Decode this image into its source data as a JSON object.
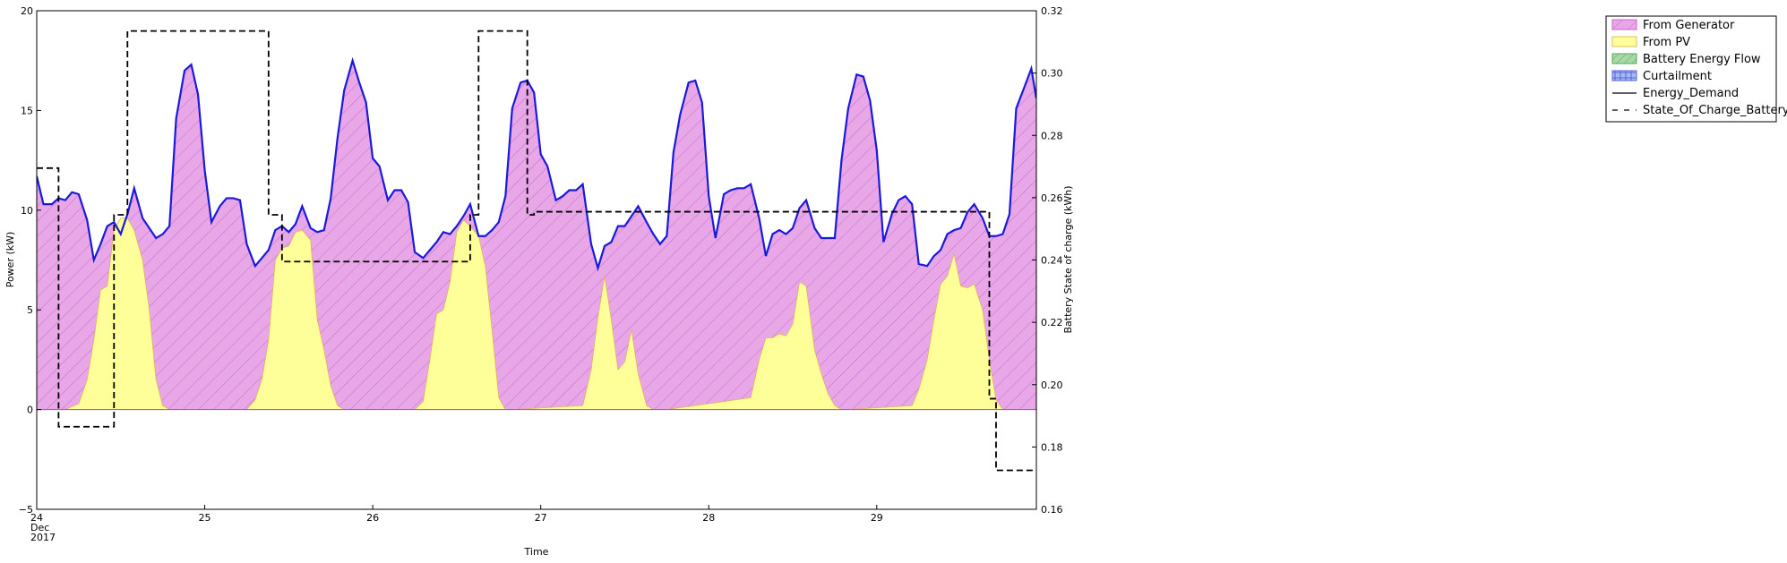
{
  "chart_data": {
    "type": "area",
    "xlabel": "Time",
    "ylabel_left": "Power (kW)",
    "ylabel_right": "Battery State of charge (kWh)",
    "x_tick_labels": [
      "24\nDec\n2017",
      "25",
      "26",
      "27",
      "28",
      "29"
    ],
    "x_ticks_day": [
      24,
      25,
      26,
      27,
      28,
      29
    ],
    "xlim_day": [
      24,
      29.95
    ],
    "y_left_ticks": [
      -5,
      0,
      5,
      10,
      15,
      20
    ],
    "ylim_left": [
      -5,
      20
    ],
    "y_right_ticks": [
      0.16,
      0.18,
      0.2,
      0.22,
      0.24,
      0.26,
      0.28,
      0.3,
      0.32
    ],
    "ylim_right": [
      0.16,
      0.32
    ],
    "legend_position": "outside-right-top",
    "legend": [
      {
        "label": "From Generator",
        "kind": "patch",
        "color": "#e8a8e8",
        "hatch": "#cc66cc"
      },
      {
        "label": "From PV",
        "kind": "patch",
        "color": "#ffff99",
        "hatch": "#e0e080"
      },
      {
        "label": "Battery Energy Flow",
        "kind": "patch",
        "color": "#a8d8a8",
        "hatch": "#55aa55"
      },
      {
        "label": "Curtailment",
        "kind": "patch",
        "color": "#a8b8f0",
        "hatch": "#5566dd"
      },
      {
        "label": "Energy_Demand",
        "kind": "line",
        "color": "#000000"
      },
      {
        "label": "State_Of_Charge_Battery",
        "kind": "dash",
        "color": "#000000"
      }
    ],
    "series": [
      {
        "name": "Energy_Demand",
        "color": "#1a1adb",
        "x": [
          24.0,
          24.04,
          24.09,
          24.13,
          24.17,
          24.21,
          24.25,
          24.3,
          24.34,
          24.38,
          24.42,
          24.46,
          24.5,
          24.54,
          24.58,
          24.63,
          24.67,
          24.71,
          24.75,
          24.79,
          24.83,
          24.88,
          24.92,
          24.96,
          25.0,
          25.04,
          25.09,
          25.13,
          25.17,
          25.21,
          25.25,
          25.3,
          25.34,
          25.38,
          25.42,
          25.46,
          25.5,
          25.54,
          25.58,
          25.63,
          25.67,
          25.71,
          25.75,
          25.79,
          25.83,
          25.88,
          25.92,
          25.96,
          26.0,
          26.04,
          26.09,
          26.13,
          26.17,
          26.21,
          26.25,
          26.3,
          26.34,
          26.38,
          26.42,
          26.46,
          26.5,
          26.54,
          26.58,
          26.63,
          26.67,
          26.71,
          26.75,
          26.79,
          26.83,
          26.88,
          26.92,
          26.96,
          27.0,
          27.04,
          27.09,
          27.13,
          27.17,
          27.21,
          27.25,
          27.3,
          27.34,
          27.38,
          27.42,
          27.46,
          27.5,
          27.54,
          27.58,
          27.63,
          27.67,
          27.71,
          27.75,
          27.79,
          27.83,
          27.88,
          27.92,
          27.96,
          28.0,
          28.04,
          28.09,
          28.13,
          28.17,
          28.21,
          28.25,
          28.3,
          28.34,
          28.38,
          28.42,
          28.46,
          28.5,
          28.54,
          28.58,
          28.63,
          28.67,
          28.71,
          28.75,
          28.79,
          28.83,
          28.88,
          28.92,
          28.96,
          29.0,
          29.04,
          29.09,
          29.13,
          29.17,
          29.21,
          29.25,
          29.3,
          29.34,
          29.38,
          29.42,
          29.46,
          29.5,
          29.54,
          29.58,
          29.63,
          29.67,
          29.71,
          29.75,
          29.79,
          29.83,
          29.88,
          29.92,
          29.95
        ],
        "y": [
          11.7,
          10.3,
          10.3,
          10.6,
          10.5,
          10.9,
          10.8,
          9.5,
          7.5,
          8.3,
          9.2,
          9.4,
          8.8,
          9.8,
          11.1,
          9.6,
          9.1,
          8.6,
          8.8,
          9.2,
          14.6,
          17.0,
          17.3,
          15.8,
          12.0,
          9.4,
          10.2,
          10.6,
          10.6,
          10.5,
          8.3,
          7.2,
          7.6,
          8.0,
          9.0,
          9.2,
          8.9,
          9.3,
          10.2,
          9.1,
          8.9,
          9.0,
          10.6,
          13.6,
          16.0,
          17.5,
          16.4,
          15.4,
          12.6,
          12.2,
          10.5,
          11.0,
          11.0,
          10.4,
          7.9,
          7.6,
          8.0,
          8.4,
          8.9,
          8.8,
          9.2,
          9.7,
          10.3,
          8.7,
          8.7,
          9.0,
          9.4,
          10.7,
          15.1,
          16.4,
          16.5,
          15.9,
          12.8,
          12.2,
          10.5,
          10.7,
          11.0,
          11.0,
          11.3,
          8.3,
          7.1,
          8.2,
          8.4,
          9.2,
          9.2,
          9.7,
          10.2,
          9.4,
          8.8,
          8.3,
          8.7,
          12.9,
          14.8,
          16.4,
          16.5,
          15.4,
          10.7,
          8.6,
          10.8,
          11.0,
          11.1,
          11.1,
          11.3,
          9.6,
          7.7,
          8.8,
          9.0,
          8.8,
          9.1,
          10.1,
          10.5,
          9.1,
          8.6,
          8.6,
          8.6,
          12.5,
          15.1,
          16.8,
          16.7,
          15.5,
          13.0,
          8.4,
          9.8,
          10.5,
          10.7,
          10.3,
          7.3,
          7.2,
          7.7,
          8.0,
          8.8,
          9.0,
          9.1,
          9.9,
          10.3,
          9.6,
          8.7,
          8.7,
          8.8,
          9.8,
          15.1,
          16.2,
          17.1,
          15.6
        ]
      },
      {
        "name": "From PV",
        "color": "#ffff99",
        "x": [
          24.0,
          24.17,
          24.25,
          24.3,
          24.34,
          24.38,
          24.42,
          24.46,
          24.5,
          24.54,
          24.58,
          24.63,
          24.67,
          24.71,
          24.75,
          24.79,
          24.83,
          25.25,
          25.3,
          25.34,
          25.38,
          25.42,
          25.46,
          25.5,
          25.54,
          25.58,
          25.63,
          25.67,
          25.71,
          25.75,
          25.79,
          25.83,
          26.25,
          26.3,
          26.34,
          26.38,
          26.42,
          26.46,
          26.5,
          26.54,
          26.58,
          26.63,
          26.67,
          26.71,
          26.75,
          26.79,
          26.83,
          27.25,
          27.3,
          27.34,
          27.38,
          27.42,
          27.46,
          27.5,
          27.54,
          27.58,
          27.63,
          27.67,
          27.71,
          27.75,
          28.25,
          28.3,
          28.34,
          28.38,
          28.42,
          28.46,
          28.5,
          28.54,
          28.58,
          28.63,
          28.67,
          28.71,
          28.75,
          28.79,
          28.83,
          29.21,
          29.25,
          29.3,
          29.34,
          29.38,
          29.42,
          29.46,
          29.5,
          29.54,
          29.58,
          29.63,
          29.67,
          29.71,
          29.75,
          29.79,
          29.95
        ],
        "y": [
          0,
          0,
          0.3,
          1.5,
          3.5,
          6.0,
          6.2,
          9.0,
          9.6,
          9.6,
          9.0,
          7.5,
          5.0,
          1.5,
          0.2,
          0,
          0,
          0,
          0.5,
          1.5,
          3.5,
          7.5,
          8.1,
          8.2,
          8.9,
          9.0,
          8.5,
          4.5,
          3.0,
          1.2,
          0.2,
          0,
          0,
          0.4,
          2.5,
          4.8,
          5.0,
          6.4,
          8.9,
          9.5,
          9.2,
          8.7,
          7.2,
          4.0,
          0.6,
          0,
          0,
          0.2,
          2.0,
          4.6,
          6.7,
          4.5,
          2.0,
          2.4,
          4.0,
          1.8,
          0.2,
          0,
          0,
          0,
          0.6,
          2.5,
          3.6,
          3.6,
          3.8,
          3.7,
          4.3,
          6.4,
          6.2,
          3.0,
          1.8,
          0.8,
          0.2,
          0,
          0,
          0.2,
          1.0,
          2.5,
          4.5,
          6.3,
          6.7,
          7.8,
          6.2,
          6.1,
          6.3,
          5.0,
          2.5,
          0.5,
          0,
          0,
          0
        ]
      },
      {
        "name": "State_Of_Charge_Battery",
        "color": "#000000",
        "axis": "right",
        "step_x": [
          24.0,
          24.13,
          24.13,
          24.46,
          24.46,
          24.54,
          24.54,
          25.38,
          25.38,
          25.46,
          25.46,
          26.58,
          26.58,
          26.63,
          26.63,
          26.92,
          26.92,
          26.96,
          26.96,
          29.67,
          29.67,
          29.71,
          29.71,
          29.95
        ],
        "step_y": [
          0.2695,
          0.2695,
          0.1865,
          0.1865,
          0.2545,
          0.2545,
          0.3135,
          0.3135,
          0.2545,
          0.2545,
          0.2395,
          0.2395,
          0.2545,
          0.2545,
          0.3135,
          0.3135,
          0.2545,
          0.2545,
          0.2555,
          0.2555,
          0.1955,
          0.1955,
          0.1725,
          0.1725
        ]
      }
    ]
  }
}
